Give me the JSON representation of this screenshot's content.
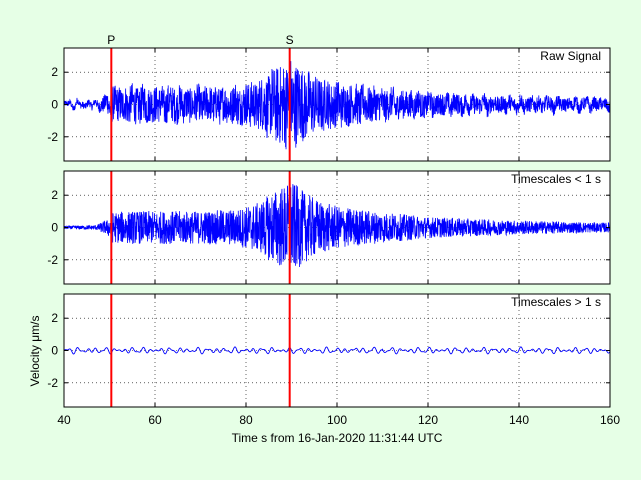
{
  "colors": {
    "figure_background": "#e6ffe6",
    "axes_background": "#ffffff",
    "trace": "#0000ff",
    "phase_marker": "#ff0000",
    "grid": "#000000"
  },
  "chart_data": {
    "type": "line",
    "xlabel": "Time s from 16-Jan-2020 11:31:44 UTC",
    "ylabel": "Velocity μm/s",
    "xlim": [
      40,
      160
    ],
    "xticks": [
      40,
      60,
      80,
      100,
      120,
      140,
      160
    ],
    "ylim": [
      -3.5,
      3.5
    ],
    "yticks": [
      -2,
      0,
      2
    ],
    "grid": true,
    "phases": [
      {
        "label": "P",
        "time": 50.4
      },
      {
        "label": "S",
        "time": 89.6
      }
    ],
    "panels": [
      {
        "title": "Raw Signal",
        "envelope": {
          "times": [
            40,
            47,
            49.5,
            50.5,
            55,
            70,
            78,
            83,
            86,
            90,
            93,
            96,
            100,
            108,
            120,
            135,
            150,
            160
          ],
          "amplitude": [
            0.15,
            0.2,
            0.55,
            0.9,
            0.95,
            0.9,
            1.0,
            1.3,
            1.9,
            2.4,
            1.8,
            1.4,
            1.15,
            0.9,
            0.6,
            0.45,
            0.35,
            0.3
          ]
        },
        "long_period_amplitude": 0.2
      },
      {
        "title": "Timescales < 1 s",
        "envelope": {
          "times": [
            40,
            47,
            49.5,
            50.5,
            55,
            70,
            78,
            83,
            86,
            90,
            93,
            96,
            100,
            108,
            120,
            135,
            150,
            160
          ],
          "amplitude": [
            0.08,
            0.12,
            0.4,
            0.8,
            0.85,
            0.85,
            0.95,
            1.3,
            1.9,
            2.4,
            1.8,
            1.4,
            1.1,
            0.85,
            0.55,
            0.4,
            0.3,
            0.25
          ]
        },
        "long_period_amplitude": 0
      },
      {
        "title": "Timescales > 1 s",
        "envelope": {
          "times": [
            40,
            50,
            160
          ],
          "amplitude": [
            0,
            0,
            0
          ]
        },
        "long_period_amplitude": 0.15
      }
    ]
  }
}
